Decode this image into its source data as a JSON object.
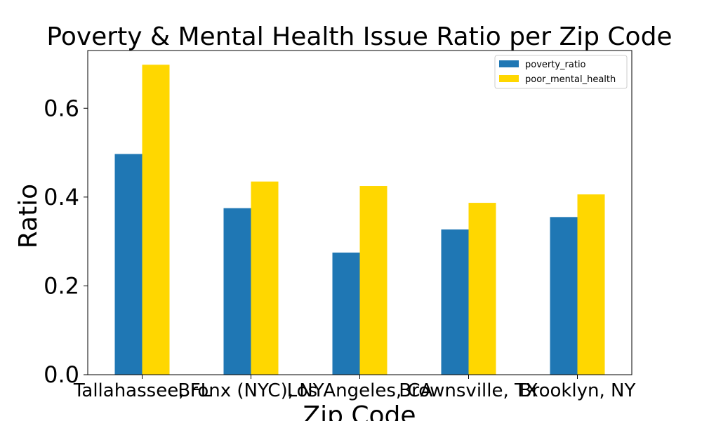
{
  "chart_data": {
    "type": "bar",
    "title": "Poverty & Mental Health Issue Ratio per Zip Code",
    "xlabel": "Zip Code",
    "ylabel": "Ratio",
    "categories": [
      "Tallahassee, FL",
      "Bronx (NYC), NY",
      "Los Angeles, CA",
      "Brownsville, TX",
      "Brooklyn, NY"
    ],
    "series": [
      {
        "name": "poverty_ratio",
        "color": "#1f77b4",
        "values": [
          0.497,
          0.375,
          0.275,
          0.327,
          0.355
        ]
      },
      {
        "name": "poor_mental_health",
        "color": "#ffd700",
        "values": [
          0.698,
          0.435,
          0.425,
          0.387,
          0.406
        ]
      }
    ],
    "ylim": [
      0,
      0.73
    ],
    "yticks": [
      0.0,
      0.2,
      0.4,
      0.6
    ],
    "ytick_labels": [
      "0.0",
      "0.2",
      "0.4",
      "0.6"
    ],
    "grid": false,
    "legend_position": "top-right"
  }
}
